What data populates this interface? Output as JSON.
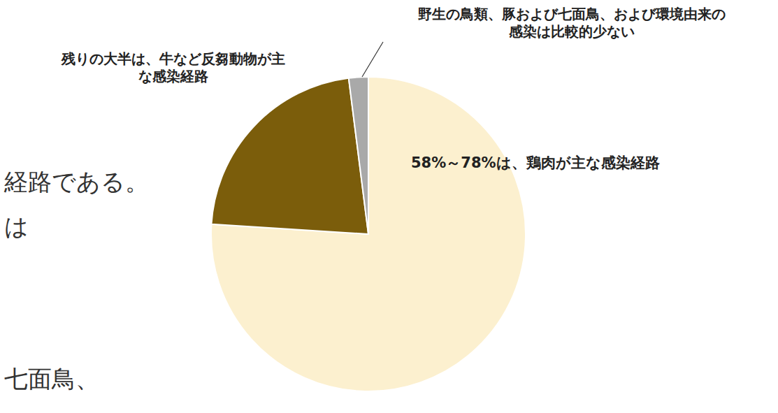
{
  "chart_data": {
    "type": "pie",
    "categories": [
      "58%～78%は、鶏肉が主な感染経路",
      "残りの大半は、牛など反芻動物が主な感染経路",
      "野生の鳥類、豚および七面鳥、および環境由来の感染は比較的少ない"
    ],
    "values": [
      76,
      22,
      2
    ],
    "colors": [
      "#fcf0cf",
      "#7b5d0b",
      "#a9a9a9"
    ],
    "text_fragments": [
      "経路である。",
      "は",
      "七面鳥、"
    ]
  }
}
